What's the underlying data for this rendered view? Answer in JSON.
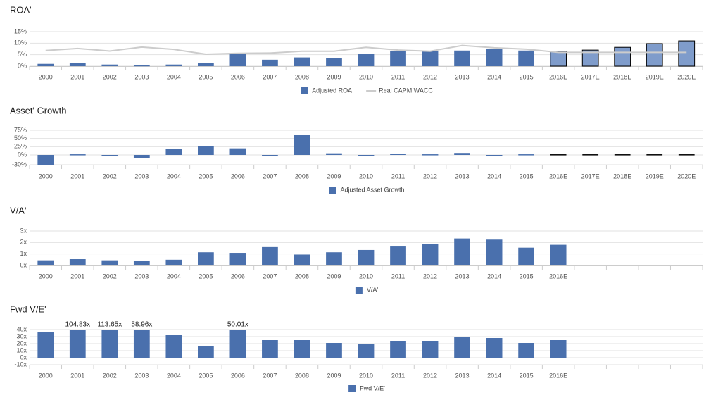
{
  "chart_data": [
    {
      "type": "bar",
      "title": "ROA'",
      "categories": [
        "2000",
        "2001",
        "2002",
        "2003",
        "2004",
        "2005",
        "2006",
        "2007",
        "2008",
        "2009",
        "2010",
        "2011",
        "2012",
        "2013",
        "2014",
        "2015",
        "2016E",
        "2017E",
        "2018E",
        "2019E",
        "2020E"
      ],
      "ylim": [
        0,
        15
      ],
      "yticks": [
        {
          "value": 0,
          "label": "0%"
        },
        {
          "value": 5,
          "label": "5%"
        },
        {
          "value": 10,
          "label": "10%"
        },
        {
          "value": 15,
          "label": "15%"
        }
      ],
      "grid": true,
      "series": [
        {
          "name": "Adjusted ROA",
          "color": "#4a70ad",
          "values": [
            1.0,
            1.3,
            0.7,
            0.4,
            0.7,
            1.3,
            5.5,
            2.8,
            3.8,
            3.5,
            5.3,
            6.6,
            6.5,
            6.8,
            7.6,
            6.8,
            6.5,
            7.0,
            8.2,
            9.8,
            11.0
          ],
          "colors": [
            "#4a70ad",
            "#4a70ad",
            "#4a70ad",
            "#4a70ad",
            "#4a70ad",
            "#4a70ad",
            "#4a70ad",
            "#4a70ad",
            "#4a70ad",
            "#4a70ad",
            "#4a70ad",
            "#4a70ad",
            "#4a70ad",
            "#4a70ad",
            "#4a70ad",
            "#4a70ad",
            "#7f9ccb",
            "#7f9ccb",
            "#7f9ccb",
            "#7f9ccb",
            "#7f9ccb"
          ],
          "edgecolors": [
            null,
            null,
            null,
            null,
            null,
            null,
            null,
            null,
            null,
            null,
            null,
            null,
            null,
            null,
            null,
            null,
            "#000000",
            "#000000",
            "#000000",
            "#000000",
            "#000000"
          ]
        },
        {
          "name": "Real CAPM WACC",
          "color": "#cccccc",
          "type": "line",
          "values": [
            6.8,
            7.7,
            6.6,
            8.3,
            7.3,
            5.2,
            5.6,
            5.7,
            6.5,
            6.5,
            8.2,
            7.0,
            6.5,
            9.0,
            8.0,
            7.4,
            6.0,
            6.0,
            6.0,
            6.0,
            6.0
          ]
        }
      ]
    },
    {
      "type": "bar",
      "title": "Asset' Growth",
      "categories": [
        "2000",
        "2001",
        "2002",
        "2003",
        "2004",
        "2005",
        "2006",
        "2007",
        "2008",
        "2009",
        "2010",
        "2011",
        "2012",
        "2013",
        "2014",
        "2015",
        "2016E",
        "2017E",
        "2018E",
        "2019E",
        "2020E"
      ],
      "ylim": [
        -30,
        75
      ],
      "yticks": [
        {
          "value": -30,
          "label": "-30%"
        },
        {
          "value": 0,
          "label": "0%"
        },
        {
          "value": 25,
          "label": "25%"
        },
        {
          "value": 50,
          "label": "50%"
        },
        {
          "value": 75,
          "label": "75%"
        }
      ],
      "grid": true,
      "series": [
        {
          "name": "Adjusted Asset Growth",
          "color": "#4a70ad",
          "values": [
            -30,
            2,
            -2,
            -10,
            18,
            27,
            20,
            0,
            62,
            5,
            0,
            4,
            2,
            6,
            0,
            2,
            2,
            2,
            2,
            2,
            2
          ],
          "colors": [
            "#4a70ad",
            "#4a70ad",
            "#4a70ad",
            "#4a70ad",
            "#4a70ad",
            "#4a70ad",
            "#4a70ad",
            "#4a70ad",
            "#4a70ad",
            "#4a70ad",
            "#4a70ad",
            "#4a70ad",
            "#4a70ad",
            "#4a70ad",
            "#4a70ad",
            "#4a70ad",
            "#000000",
            "#000000",
            "#000000",
            "#000000",
            "#000000"
          ]
        }
      ]
    },
    {
      "type": "bar",
      "title": "V/A'",
      "categories": [
        "2000",
        "2001",
        "2002",
        "2003",
        "2004",
        "2005",
        "2006",
        "2007",
        "2008",
        "2009",
        "2010",
        "2011",
        "2012",
        "2013",
        "2014",
        "2015",
        "2016E",
        null,
        null,
        null,
        null
      ],
      "ylim": [
        0,
        3
      ],
      "yticks": [
        {
          "value": 0,
          "label": "0x"
        },
        {
          "value": 1,
          "label": "1x"
        },
        {
          "value": 2,
          "label": "2x"
        },
        {
          "value": 3,
          "label": "3x"
        }
      ],
      "grid": true,
      "series": [
        {
          "name": "V/A'",
          "color": "#4a70ad",
          "values": [
            0.45,
            0.55,
            0.45,
            0.4,
            0.5,
            1.15,
            1.1,
            1.6,
            0.95,
            1.15,
            1.35,
            1.65,
            1.85,
            2.35,
            2.25,
            1.55,
            1.8,
            null,
            null,
            null,
            null
          ]
        }
      ]
    },
    {
      "type": "bar",
      "title": "Fwd V/E'",
      "categories": [
        "2000",
        "2001",
        "2002",
        "2003",
        "2004",
        "2005",
        "2006",
        "2007",
        "2008",
        "2009",
        "2010",
        "2011",
        "2012",
        "2013",
        "2014",
        "2015",
        "2016E",
        null,
        null,
        null,
        null
      ],
      "ylim": [
        -10,
        40
      ],
      "yticks": [
        {
          "value": -10,
          "label": "-10x"
        },
        {
          "value": 0,
          "label": "0x"
        },
        {
          "value": 10,
          "label": "10x"
        },
        {
          "value": 20,
          "label": "20x"
        },
        {
          "value": 30,
          "label": "30x"
        },
        {
          "value": 40,
          "label": "40x"
        }
      ],
      "grid": true,
      "series": [
        {
          "name": "Fwd V/E'",
          "color": "#4a70ad",
          "values": [
            37,
            104.83,
            113.65,
            58.96,
            33,
            17,
            50.01,
            25,
            25,
            21,
            19,
            24,
            24,
            29,
            28,
            21,
            25,
            null,
            null,
            null,
            null
          ],
          "value_labels": [
            null,
            "104.83x",
            "113.65x",
            "58.96x",
            null,
            null,
            "50.01x",
            null,
            null,
            null,
            null,
            null,
            null,
            null,
            null,
            null,
            null,
            null,
            null,
            null,
            null
          ]
        }
      ]
    }
  ]
}
